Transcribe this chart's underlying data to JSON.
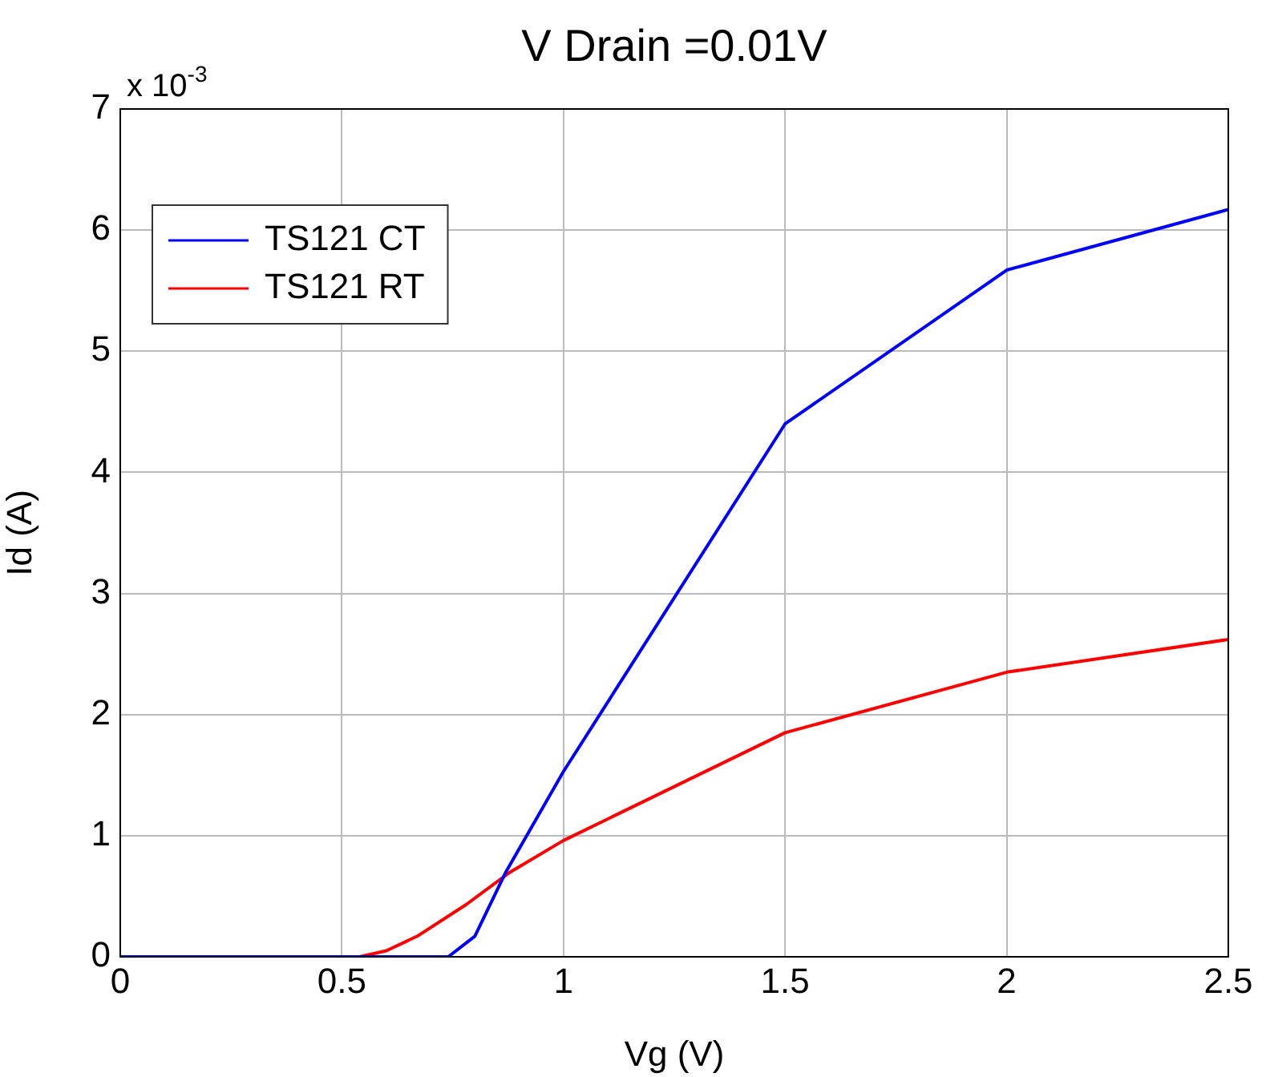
{
  "chart_data": {
    "type": "line",
    "title": "V Drain =0.01V",
    "xlabel": "Vg (V)",
    "ylabel": "Id (A)",
    "annotations": [
      "x 10$^{-3}$"
    ],
    "xlim": [
      0,
      2.5
    ],
    "xticks": [
      0,
      0.5,
      1,
      1.5,
      2,
      2.5
    ],
    "ylim": [
      0,
      7
    ],
    "yticks": [
      0,
      1,
      2,
      3,
      4,
      5,
      6,
      7
    ],
    "grid": true,
    "legend": "top left",
    "marker": "none",
    "line_style": "solid",
    "series": [
      {
        "name": "TS121 CT",
        "color": "#0000ff",
        "x": [
          0,
          0.74,
          0.8,
          0.87,
          1.0,
          1.5,
          2.0,
          2.5
        ],
        "values": [
          0,
          0,
          0.17,
          0.7,
          1.53,
          4.4,
          5.67,
          6.17
        ]
      },
      {
        "name": "TS121 RT",
        "color": "#ff0000",
        "x": [
          0,
          0.54,
          0.6,
          0.67,
          0.78,
          0.88,
          1.0,
          1.5,
          2.0,
          2.5
        ],
        "values": [
          0,
          0,
          0.05,
          0.17,
          0.43,
          0.7,
          0.96,
          1.85,
          2.35,
          2.62
        ]
      }
    ]
  }
}
